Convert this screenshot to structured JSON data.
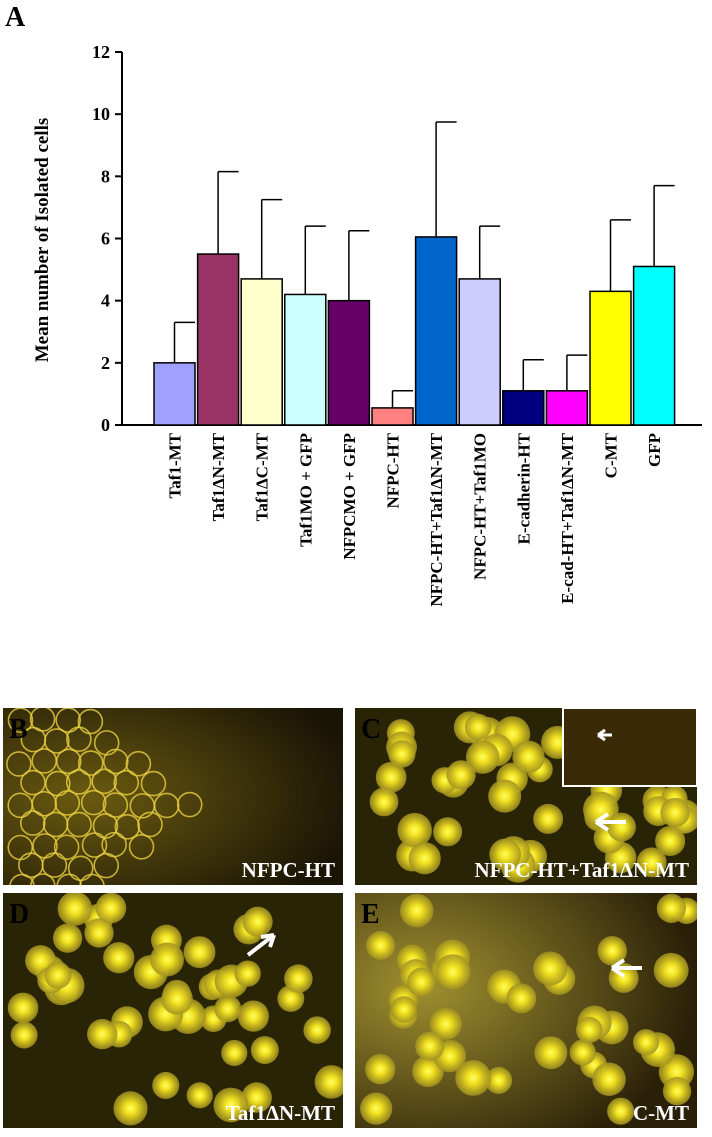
{
  "chart_data": {
    "type": "bar",
    "panel_label": "A",
    "y_label": "Mean number of Isolated cells",
    "categories": [
      "Taf1-MT",
      "Taf1ΔN-MT",
      "Taf1ΔC-MT",
      "Taf1MO + GFP",
      "NFPCMO + GFP",
      "NFPC-HT",
      "NFPC-HT+Taf1ΔN-MT",
      "NFPC-HT+Taf1MO",
      "E-cadherin-HT",
      "E-cad-HT+Taf1ΔN-MT",
      "C-MT",
      "GFP"
    ],
    "values": [
      2.0,
      5.5,
      4.7,
      4.2,
      4.0,
      0.55,
      6.05,
      4.7,
      1.1,
      1.1,
      4.3,
      5.1
    ],
    "errors": [
      1.3,
      2.65,
      2.55,
      2.2,
      2.25,
      0.55,
      3.7,
      1.7,
      1.0,
      1.15,
      2.3,
      2.6
    ],
    "colors": [
      "#a0a0ff",
      "#993366",
      "#ffffcc",
      "#ccffff",
      "#660066",
      "#ff8080",
      "#0066cc",
      "#ccccff",
      "#000080",
      "#ff00ff",
      "#ffff00",
      "#00ffff"
    ],
    "ylim": [
      0,
      12
    ],
    "yticks": [
      0,
      2,
      4,
      6,
      8,
      10,
      12
    ]
  },
  "panels": [
    {
      "letter": "B",
      "label": "NFPC-HT"
    },
    {
      "letter": "C",
      "label": "NFPC-HT+Taf1ΔN-MT"
    },
    {
      "letter": "D",
      "label": "Taf1ΔN-MT"
    },
    {
      "letter": "E",
      "label": "C-MT"
    }
  ]
}
